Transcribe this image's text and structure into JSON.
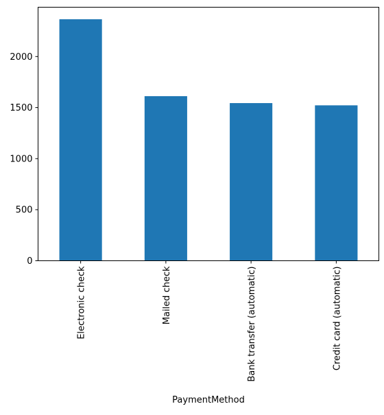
{
  "chart_data": {
    "type": "bar",
    "title": "",
    "xlabel": "PaymentMethod",
    "ylabel": "",
    "categories": [
      "Electronic check",
      "Mailed check",
      "Bank transfer (automatic)",
      "Credit card (automatic)"
    ],
    "values": [
      2365,
      1612,
      1544,
      1522
    ],
    "ylim": [
      0,
      2483
    ],
    "yticks": [
      0,
      500,
      1000,
      1500,
      2000
    ],
    "grid": false,
    "legend": "none",
    "bar_color": "#1f77b4"
  }
}
